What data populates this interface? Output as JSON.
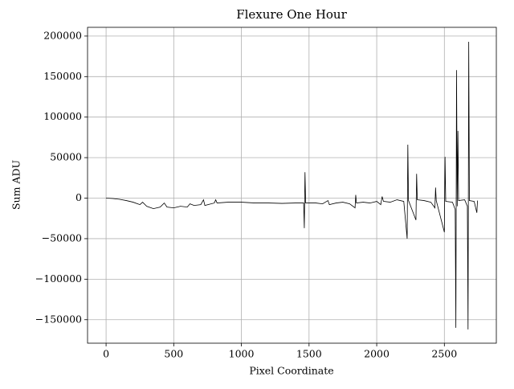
{
  "chart_data": {
    "type": "line",
    "title": "Flexure One Hour",
    "x_label": "Pixel Coordinate",
    "y_label": "Sum ADU",
    "x": [
      0,
      50,
      100,
      150,
      200,
      250,
      270,
      300,
      350,
      400,
      430,
      450,
      500,
      550,
      600,
      620,
      650,
      700,
      720,
      730,
      800,
      810,
      820,
      900,
      1000,
      1100,
      1200,
      1300,
      1400,
      1460,
      1465,
      1470,
      1475,
      1550,
      1600,
      1640,
      1650,
      1700,
      1750,
      1800,
      1840,
      1845,
      1850,
      1900,
      1950,
      2000,
      2030,
      2040,
      2050,
      2100,
      2150,
      2200,
      2225,
      2230,
      2235,
      2290,
      2295,
      2300,
      2350,
      2400,
      2430,
      2435,
      2440,
      2500,
      2505,
      2510,
      2560,
      2580,
      2585,
      2590,
      2595,
      2600,
      2605,
      2650,
      2670,
      2675,
      2680,
      2685,
      2720,
      2740,
      2745
    ],
    "values": [
      0,
      -500,
      -1500,
      -3000,
      -5000,
      -8000,
      -5000,
      -10000,
      -13000,
      -11000,
      -6000,
      -11000,
      -12000,
      -10000,
      -11000,
      -7000,
      -9000,
      -8000,
      -2000,
      -9000,
      -6000,
      -2000,
      -6000,
      -5000,
      -5000,
      -6000,
      -6000,
      -6500,
      -6000,
      -6000,
      -37000,
      32000,
      -6000,
      -6000,
      -7000,
      -3000,
      -8000,
      -6000,
      -5000,
      -7000,
      -12000,
      4000,
      -6000,
      -5000,
      -6000,
      -4000,
      -8000,
      2000,
      -4000,
      -5000,
      -2000,
      -4000,
      -50000,
      66000,
      -3000,
      -27000,
      30000,
      -2000,
      -3000,
      -5000,
      -12000,
      13000,
      -3000,
      -42000,
      51000,
      -4000,
      -5000,
      -14000,
      -160000,
      158000,
      -10000,
      83000,
      -3000,
      -2000,
      -10000,
      -162000,
      193000,
      -3000,
      -4000,
      -18000,
      -3000
    ],
    "color": "#000000",
    "xlim": [
      -137,
      2884
    ],
    "ylim": [
      -179000,
      210800
    ],
    "xticks": [
      0,
      500,
      1000,
      1500,
      2000,
      2500
    ],
    "yticks": [
      {
        "value": -150000,
        "label": "−150000"
      },
      {
        "value": -100000,
        "label": "−100000"
      },
      {
        "value": -50000,
        "label": "−50000"
      },
      0,
      50000,
      100000,
      150000,
      200000
    ],
    "grid": true
  }
}
